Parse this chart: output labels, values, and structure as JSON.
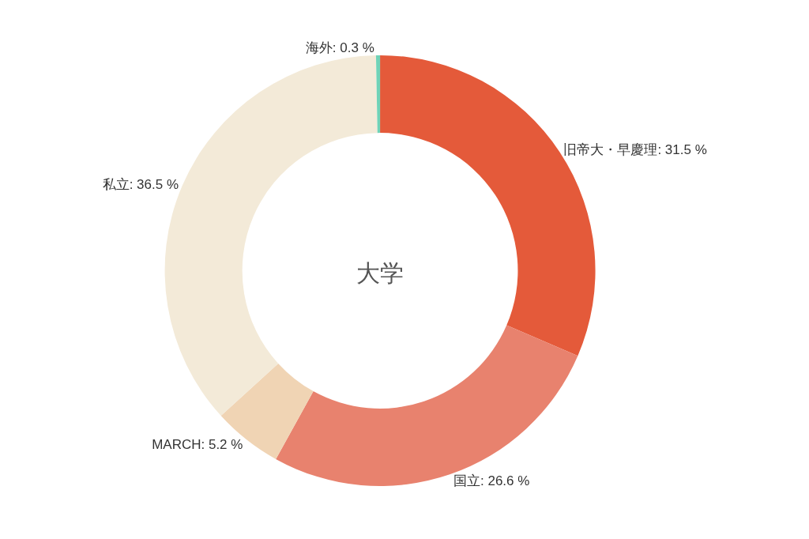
{
  "chart_data": {
    "type": "donut",
    "title": "大学",
    "categories": [
      "旧帝大・早慶理",
      "国立",
      "MARCH",
      "私立",
      "海外"
    ],
    "values": [
      31.5,
      26.6,
      5.2,
      36.5,
      0.3
    ],
    "value_labels": [
      "31.5 %",
      "26.6 %",
      "5.2 %",
      "36.5 %",
      "0.3 %"
    ],
    "colors": [
      "#e45a3a",
      "#e8826e",
      "#f0d4b4",
      "#f3ead8",
      "#6fd3b8"
    ],
    "legend": false
  }
}
